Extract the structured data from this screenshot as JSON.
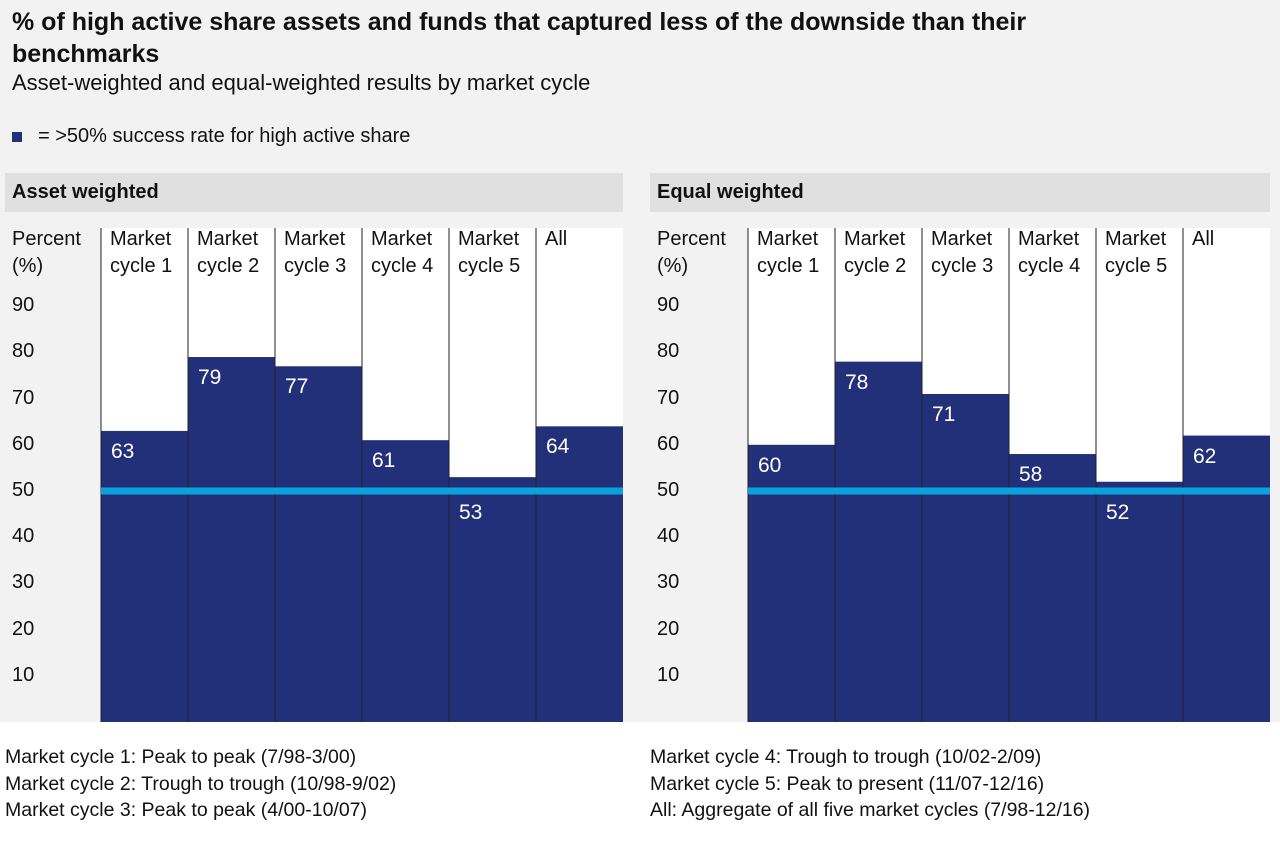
{
  "title": "% of high active share assets and funds that captured less of the downside than their benchmarks",
  "subtitle": "Asset-weighted and equal-weighted results by market cycle",
  "legend": "= >50% success rate for high active share",
  "chart_data": [
    {
      "type": "bar",
      "title": "Asset weighted",
      "y_label": "Percent (%)",
      "categories": [
        "Market cycle 1",
        "Market cycle 2",
        "Market cycle 3",
        "Market cycle 4",
        "Market cycle 5",
        "All"
      ],
      "values": [
        63,
        79,
        77,
        61,
        53,
        64
      ],
      "color": "#22307a",
      "ylim": [
        0,
        100
      ],
      "yticks": [
        10,
        20,
        30,
        40,
        50,
        60,
        70,
        80,
        90
      ],
      "reference_line": 50,
      "reference_color": "#0aa2dc"
    },
    {
      "type": "bar",
      "title": "Equal weighted",
      "y_label": "Percent (%)",
      "categories": [
        "Market cycle 1",
        "Market cycle 2",
        "Market cycle 3",
        "Market cycle 4",
        "Market cycle 5",
        "All"
      ],
      "values": [
        60,
        78,
        71,
        58,
        52,
        62
      ],
      "color": "#22307a",
      "ylim": [
        0,
        100
      ],
      "yticks": [
        10,
        20,
        30,
        40,
        50,
        60,
        70,
        80,
        90
      ],
      "reference_line": 50,
      "reference_color": "#0aa2dc"
    }
  ],
  "footnotes": [
    "Market cycle 1: Peak to peak (7/98-3/00)",
    "Market cycle 2: Trough to trough (10/98-9/02)",
    "Market cycle 3: Peak to peak (4/00-10/07)",
    "Market cycle 4: Trough to trough (10/02-2/09)",
    "Market cycle 5: Peak to present (11/07-12/16)",
    "All: Aggregate of all five market cycles (7/98-12/16)"
  ]
}
